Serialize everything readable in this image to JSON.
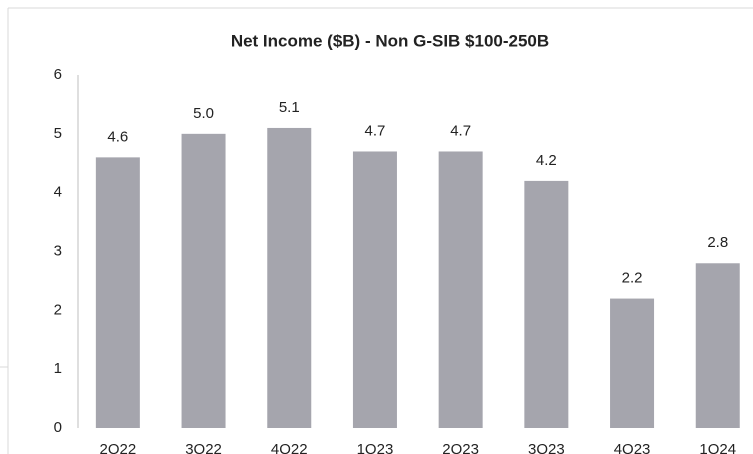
{
  "chart_data": {
    "type": "bar",
    "title": "Net Income ($B) - Non G-SIB $100-250B",
    "categories": [
      "2Q22",
      "3Q22",
      "4Q22",
      "1Q23",
      "2Q23",
      "3Q23",
      "4Q23",
      "1Q24"
    ],
    "values": [
      4.6,
      5.0,
      5.1,
      4.7,
      4.7,
      4.2,
      2.2,
      2.8
    ],
    "value_labels": [
      "4.6",
      "5.0",
      "5.1",
      "4.7",
      "4.7",
      "4.2",
      "2.2",
      "2.8"
    ],
    "color": "#a5a5ad",
    "ylim": [
      0,
      6
    ],
    "yticks": [
      0,
      1,
      2,
      3,
      4,
      5,
      6
    ],
    "grid": false
  }
}
